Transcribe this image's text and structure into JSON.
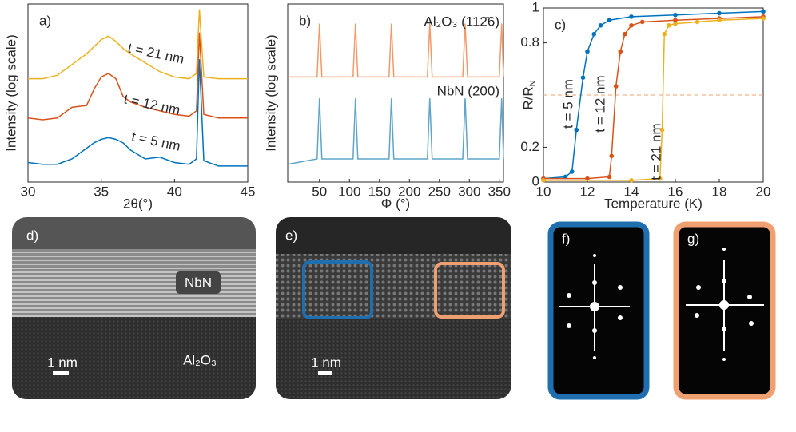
{
  "chart_data": [
    {
      "type": "line",
      "panel_label": "a)",
      "xlabel": "2θ(°)",
      "ylabel": "Intensity (log scale)",
      "xlim": [
        30,
        45
      ],
      "xticks": [
        30,
        35,
        40,
        45
      ],
      "ylim": [
        0,
        10
      ],
      "x": [
        30,
        31,
        32,
        33,
        34,
        34.5,
        35,
        35.5,
        36,
        36.5,
        37,
        38,
        39,
        40,
        41,
        41.5,
        41.7,
        42,
        43,
        44,
        45
      ],
      "series": [
        {
          "name": "t = 5 nm",
          "color": "#0072bd",
          "values": [
            1.1,
            1.0,
            1.0,
            1.3,
            1.9,
            2.2,
            2.4,
            2.5,
            2.4,
            2.2,
            1.8,
            1.3,
            1.4,
            1.1,
            1.0,
            1.3,
            6.9,
            1.2,
            0.9,
            0.9,
            0.9
          ]
        },
        {
          "name": "t = 12 nm",
          "color": "#d95319",
          "values": [
            3.6,
            3.5,
            3.6,
            4.2,
            4.3,
            5.2,
            5.9,
            6.1,
            5.8,
            4.8,
            4.5,
            4.2,
            4.0,
            3.8,
            3.7,
            4.0,
            8.4,
            3.8,
            3.6,
            3.6,
            3.6
          ]
        },
        {
          "name": "t = 21 nm",
          "color": "#edb120",
          "values": [
            5.8,
            5.8,
            6.0,
            6.6,
            7.2,
            7.6,
            8.0,
            8.2,
            7.9,
            7.5,
            7.2,
            6.7,
            6.2,
            5.9,
            5.8,
            6.1,
            9.7,
            5.9,
            5.8,
            5.8,
            5.8
          ]
        }
      ]
    },
    {
      "type": "line",
      "panel_label": "b)",
      "xlabel": "Φ (°)",
      "ylabel": "Intensity (log scale)",
      "xlim": [
        -3,
        357
      ],
      "xticks": [
        50,
        100,
        150,
        200,
        250,
        300,
        350
      ],
      "ylim": [
        0,
        10
      ],
      "x": [
        -3,
        46,
        50,
        54,
        106,
        110,
        114,
        166,
        170,
        174,
        230,
        234,
        238,
        289,
        293,
        297,
        350,
        354,
        357
      ],
      "series": [
        {
          "name": "Al₂O₃ (112̄6)",
          "color": "#f29a6a",
          "values": [
            5.9,
            5.9,
            8.9,
            5.9,
            5.9,
            8.9,
            5.9,
            5.9,
            8.9,
            5.9,
            5.9,
            8.9,
            5.9,
            5.9,
            8.9,
            5.9,
            5.9,
            8.9,
            5.9
          ]
        },
        {
          "name": "NbN (200)",
          "color": "#5ea5c9",
          "values": [
            1.0,
            1.3,
            4.7,
            1.3,
            1.3,
            4.7,
            1.3,
            1.3,
            4.7,
            1.3,
            1.3,
            4.7,
            1.3,
            1.3,
            4.7,
            1.3,
            1.3,
            4.7,
            1.3
          ]
        }
      ]
    },
    {
      "type": "line",
      "panel_label": "c)",
      "xlabel": "Temperature (K)",
      "ylabel": "R/R",
      "ylabel_subscript": "N",
      "xlim": [
        10,
        20
      ],
      "xticks": [
        10,
        12,
        14,
        16,
        18,
        20
      ],
      "ylim": [
        0,
        1
      ],
      "yticks": [
        0,
        0.2,
        0.8,
        1
      ],
      "hline": 0.5,
      "markers": true,
      "series": [
        {
          "name": "t = 5 nm",
          "color": "#0072bd",
          "x": [
            10,
            11,
            11.3,
            11.5,
            11.8,
            12,
            12.3,
            12.6,
            13,
            14,
            16,
            18,
            20
          ],
          "values": [
            0.02,
            0.03,
            0.06,
            0.3,
            0.6,
            0.75,
            0.85,
            0.9,
            0.93,
            0.95,
            0.96,
            0.97,
            0.98
          ]
        },
        {
          "name": "t = 12 nm",
          "color": "#d95319",
          "x": [
            10,
            12,
            13,
            13.1,
            13.3,
            13.5,
            13.7,
            14,
            14.5,
            16,
            18,
            20
          ],
          "values": [
            0.02,
            0.02,
            0.03,
            0.15,
            0.55,
            0.75,
            0.85,
            0.9,
            0.92,
            0.93,
            0.94,
            0.95
          ]
        },
        {
          "name": "t = 21 nm",
          "color": "#edb120",
          "x": [
            10,
            14,
            15.3,
            15.4,
            15.5,
            15.7,
            16,
            17,
            18,
            20
          ],
          "values": [
            0.01,
            0.01,
            0.02,
            0.3,
            0.85,
            0.9,
            0.91,
            0.92,
            0.93,
            0.94
          ]
        }
      ]
    }
  ],
  "images": [
    {
      "label": "d)",
      "film": "NbN",
      "substrate": "Al₂O₃",
      "scale": "1 nm"
    },
    {
      "label": "e)",
      "scale": "1 nm"
    },
    {
      "label": "f)"
    },
    {
      "label": "g)"
    }
  ]
}
